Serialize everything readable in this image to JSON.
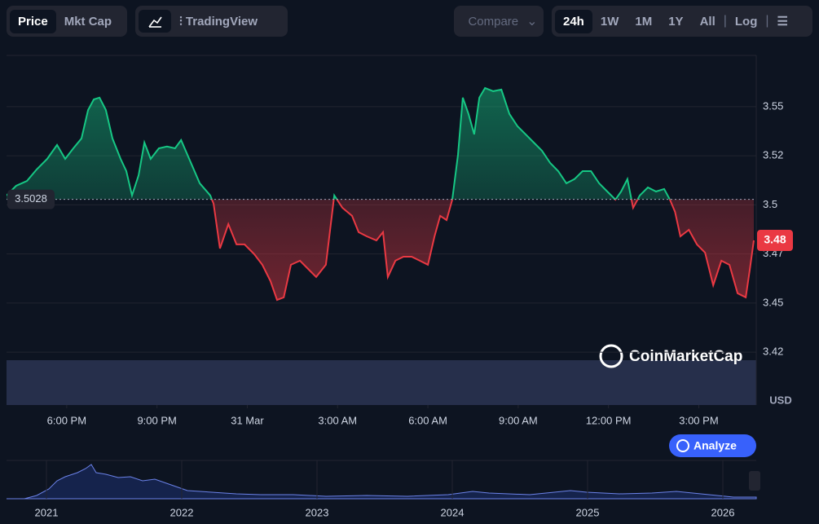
{
  "toolbar": {
    "view_tabs": [
      "Price",
      "Mkt Cap"
    ],
    "chart_tools": [
      "TradingView"
    ],
    "compare": "Compare",
    "ranges": [
      "24h",
      "1W",
      "1M",
      "1Y",
      "All"
    ],
    "log": "Log"
  },
  "chart_data": {
    "type": "line",
    "x": [
      0,
      0.32,
      0.68,
      1.0,
      1.35,
      1.68,
      1.95,
      2.22,
      2.49,
      2.71,
      2.9,
      3.09,
      3.3,
      3.52,
      3.79,
      3.98,
      4.17,
      4.39,
      4.58,
      4.79,
      5.06,
      5.33,
      5.6,
      5.8,
      6.07,
      6.42,
      6.77,
      6.88,
      7.09,
      7.37,
      7.64,
      7.91,
      8.23,
      8.5,
      8.77,
      8.99,
      9.21,
      9.45,
      9.75,
      10.02,
      10.29,
      10.61,
      10.89,
      11.16,
      11.48,
      11.7,
      11.97,
      12.29,
      12.51,
      12.67,
      12.92,
      13.19,
      13.46,
      13.73,
      14.0,
      14.22,
      14.41,
      14.62,
      14.81,
      15.0,
      15.16,
      15.35,
      15.54,
      15.71,
      15.9,
      16.17,
      16.44,
      16.71,
      16.98,
      17.25,
      17.52,
      17.79,
      18.06,
      18.33,
      18.6,
      18.87,
      19.14,
      19.42,
      19.69,
      19.96,
      20.23,
      20.42,
      20.63,
      20.82,
      21.04,
      21.31,
      21.58,
      21.85,
      22.04,
      22.21,
      22.39,
      22.67,
      22.94,
      23.21,
      23.48,
      23.75,
      24.02,
      24.29,
      24.56,
      24.7,
      24.83
    ],
    "values": [
      3.5048,
      3.5097,
      3.5122,
      3.518,
      3.5234,
      3.5305,
      3.5234,
      3.5288,
      3.5338,
      3.5483,
      3.5537,
      3.5546,
      3.5483,
      3.5338,
      3.5234,
      3.5172,
      3.5048,
      3.5151,
      3.5317,
      3.5234,
      3.5288,
      3.5297,
      3.5288,
      3.533,
      3.5234,
      3.511,
      3.5048,
      3.5006,
      3.4778,
      3.4902,
      3.4799,
      3.4799,
      3.4749,
      3.4695,
      3.4612,
      3.4516,
      3.4529,
      3.4695,
      3.4716,
      3.4674,
      3.4633,
      3.4695,
      3.5048,
      3.4985,
      3.4944,
      3.4861,
      3.484,
      3.4819,
      3.4861,
      3.4633,
      3.4716,
      3.4736,
      3.4736,
      3.4716,
      3.4695,
      3.484,
      3.4944,
      3.4923,
      3.5027,
      3.5255,
      3.5546,
      3.5463,
      3.5359,
      3.5546,
      3.5595,
      3.5579,
      3.5587,
      3.5463,
      3.54,
      3.5359,
      3.5317,
      3.5276,
      3.5214,
      3.5172,
      3.511,
      3.5131,
      3.5172,
      3.5172,
      3.511,
      3.5068,
      3.5027,
      3.5068,
      3.5131,
      3.4985,
      3.5048,
      3.5089,
      3.5068,
      3.5081,
      3.5027,
      3.4965,
      3.484,
      3.4873,
      3.4799,
      3.4757,
      3.4591,
      3.4716,
      3.4695,
      3.455,
      3.4529,
      3.4674,
      3.4819
    ],
    "last_value_label": "3.48",
    "baseline": 3.5028,
    "up_color": "#16c784",
    "down_color": "#ea3943",
    "xlim": [
      0,
      24.91
    ],
    "xticks": [
      {
        "value": 2,
        "label": "6:00 PM"
      },
      {
        "value": 5,
        "label": "9:00 PM"
      },
      {
        "value": 8,
        "label": "31 Mar"
      },
      {
        "value": 11,
        "label": "3:00 AM"
      },
      {
        "value": 14,
        "label": "6:00 AM"
      },
      {
        "value": 17,
        "label": "9:00 AM"
      },
      {
        "value": 20,
        "label": "12:00 PM"
      },
      {
        "value": 23,
        "label": "3:00 PM"
      }
    ],
    "ylim": [
      3.3981,
      3.5761
    ],
    "yticks": [
      {
        "value": 3.425,
        "label": "3.42"
      },
      3.45,
      {
        "value": 3.475,
        "label": "3.47"
      },
      3.5,
      {
        "value": 3.525,
        "label": "3.52"
      },
      3.55
    ],
    "y_unit": "USD",
    "grid": true
  },
  "watermark": "CoinMarketCap",
  "analyze": "Analyze",
  "navigator": {
    "labels": [
      "2021",
      "2022",
      "2023",
      "2024",
      "2025",
      "2026"
    ]
  }
}
